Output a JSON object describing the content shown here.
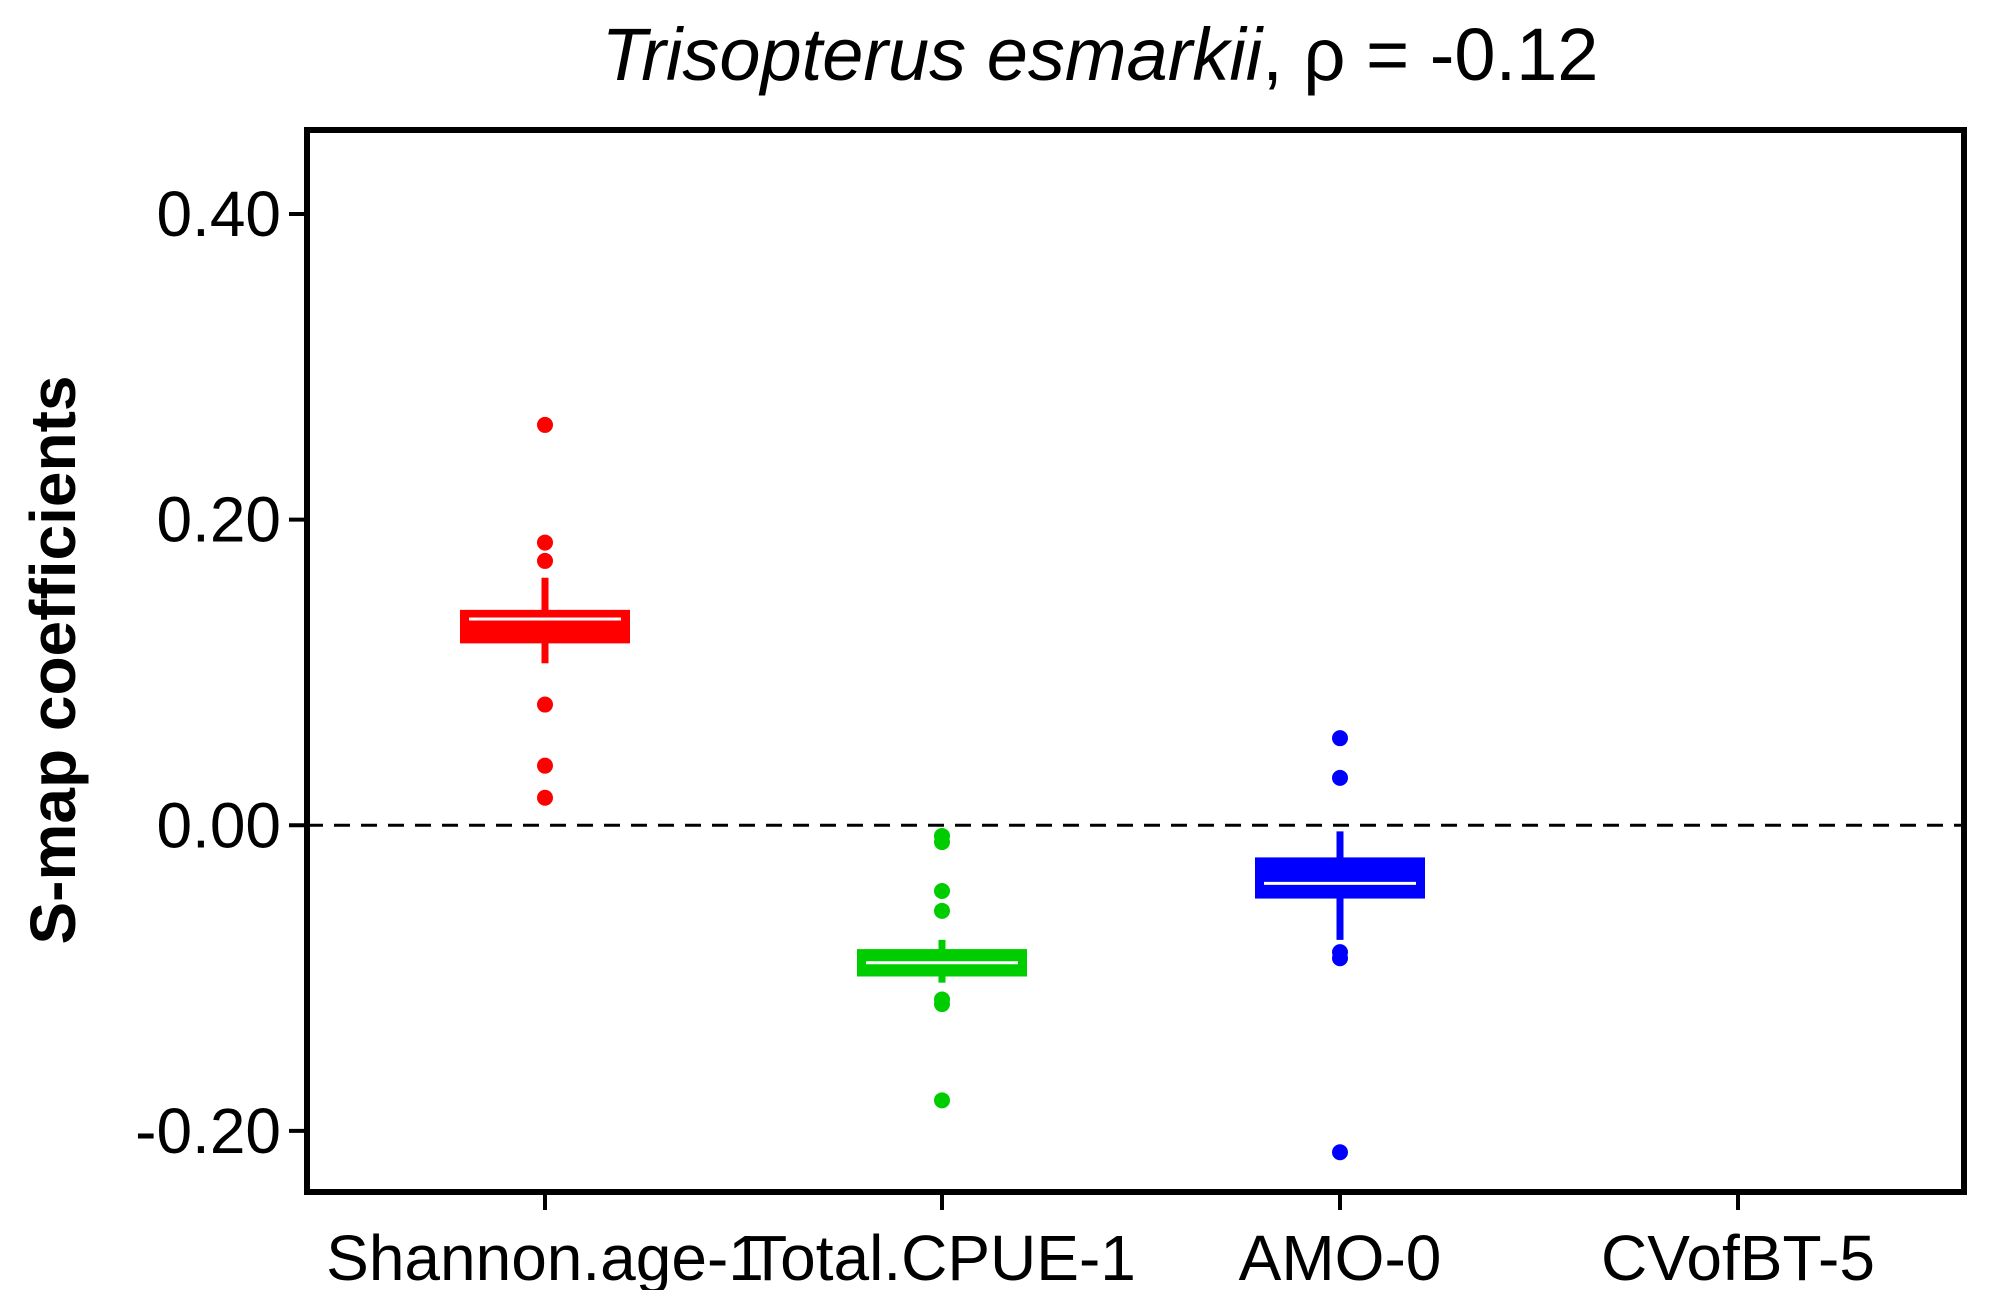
{
  "chart_data": {
    "type": "box",
    "title_species": "Trisopterus esmarkii",
    "title_rest": ", ρ = -0.12",
    "ylabel": "S-map coefficients",
    "xlabel": "",
    "ylim": [
      -0.24,
      0.455
    ],
    "yticks": [
      -0.2,
      0.0,
      0.2,
      0.4
    ],
    "ytick_labels": [
      "-0.20",
      "0.00",
      "0.20",
      "0.40"
    ],
    "categories": [
      "Shannon.age-1",
      "Total.CPUE-1",
      "AMO-0",
      "CVofBT-5"
    ],
    "reference_line": 0.0,
    "grid": false,
    "legend": "none",
    "boxes": [
      {
        "category": "Shannon.age-1",
        "color": "#ff0000",
        "q1": 0.121,
        "median": 0.135,
        "q3": 0.139,
        "whisker_low": 0.106,
        "whisker_high": 0.162,
        "outliers": [
          0.262,
          0.185,
          0.173,
          0.079,
          0.039,
          0.018
        ]
      },
      {
        "category": "Total.CPUE-1",
        "color": "#00cd00",
        "q1": -0.097,
        "median": -0.09,
        "q3": -0.083,
        "whisker_low": -0.103,
        "whisker_high": -0.075,
        "outliers": [
          -0.007,
          -0.011,
          -0.043,
          -0.056,
          -0.114,
          -0.117,
          -0.18
        ]
      },
      {
        "category": "AMO-0",
        "color": "#0000ff",
        "q1": -0.046,
        "median": -0.038,
        "q3": -0.023,
        "whisker_low": -0.075,
        "whisker_high": -0.004,
        "outliers": [
          0.057,
          0.031,
          -0.083,
          -0.087,
          -0.214
        ]
      },
      {
        "category": "CVofBT-5",
        "color": "#000000",
        "q1": null,
        "median": null,
        "q3": null,
        "whisker_low": null,
        "whisker_high": null,
        "outliers": []
      }
    ]
  }
}
